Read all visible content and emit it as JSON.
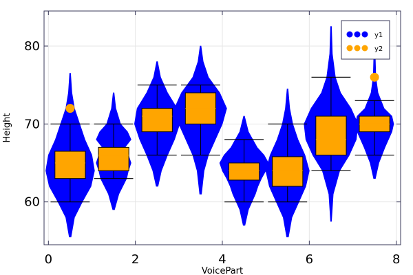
{
  "chart_data": {
    "type": "violin+box",
    "xlabel": "VoicePart",
    "ylabel": "Height",
    "xlim": [
      -0.1,
      8.1
    ],
    "ylim": [
      54.5,
      84.5
    ],
    "xticks": [
      0,
      2,
      4,
      6,
      8
    ],
    "yticks": [
      60,
      70,
      80
    ],
    "grid": true,
    "legend": {
      "position": "top-right",
      "entries": [
        {
          "name": "y1",
          "color": "#0000ff"
        },
        {
          "name": "y2",
          "color": "#ffa500"
        }
      ]
    },
    "colors": {
      "violin": "#0000ff",
      "box": "#ffa500",
      "whisker_line": "#000000"
    },
    "groups": [
      {
        "x": 0.5,
        "min": 55.5,
        "max": 76.5,
        "whisker_low": 60,
        "q1": 63,
        "median": 65,
        "q3": 66.5,
        "whisker_high": 70,
        "outliers": [
          72
        ],
        "density": [
          [
            55.5,
            0.02
          ],
          [
            58,
            0.1
          ],
          [
            60,
            0.28
          ],
          [
            62,
            0.48
          ],
          [
            64,
            0.56
          ],
          [
            66,
            0.5
          ],
          [
            68,
            0.34
          ],
          [
            70,
            0.22
          ],
          [
            72,
            0.1
          ],
          [
            74,
            0.04
          ],
          [
            76.5,
            0.01
          ]
        ]
      },
      {
        "x": 1.5,
        "min": 59,
        "max": 74,
        "whisker_low": 63,
        "q1": 64,
        "median": 66,
        "q3": 67,
        "whisker_high": 70,
        "outliers": [],
        "density": [
          [
            59,
            0.02
          ],
          [
            61,
            0.12
          ],
          [
            63,
            0.3
          ],
          [
            64,
            0.34
          ],
          [
            65,
            0.4
          ],
          [
            66,
            0.34
          ],
          [
            67,
            0.26
          ],
          [
            68,
            0.4
          ],
          [
            69,
            0.32
          ],
          [
            70,
            0.16
          ],
          [
            72,
            0.05
          ],
          [
            74,
            0.01
          ]
        ]
      },
      {
        "x": 2.5,
        "min": 62,
        "max": 78,
        "whisker_low": 66,
        "q1": 69,
        "median": 71,
        "q3": 72,
        "whisker_high": 75,
        "outliers": [],
        "density": [
          [
            62,
            0.02
          ],
          [
            64,
            0.1
          ],
          [
            66,
            0.24
          ],
          [
            68,
            0.4
          ],
          [
            70,
            0.52
          ],
          [
            72,
            0.46
          ],
          [
            74,
            0.24
          ],
          [
            76,
            0.08
          ],
          [
            78,
            0.01
          ]
        ]
      },
      {
        "x": 3.5,
        "min": 61,
        "max": 80,
        "whisker_low": 66,
        "q1": 70,
        "median": 72,
        "q3": 74,
        "whisker_high": 75,
        "outliers": [],
        "density": [
          [
            61,
            0.02
          ],
          [
            64,
            0.08
          ],
          [
            66,
            0.18
          ],
          [
            68,
            0.34
          ],
          [
            70,
            0.5
          ],
          [
            72,
            0.6
          ],
          [
            74,
            0.44
          ],
          [
            76,
            0.18
          ],
          [
            78,
            0.06
          ],
          [
            80,
            0.01
          ]
        ]
      },
      {
        "x": 4.5,
        "min": 57,
        "max": 71,
        "whisker_low": 60,
        "q1": 62.8,
        "median": 64,
        "q3": 65,
        "whisker_high": 68,
        "outliers": [],
        "density": [
          [
            57,
            0.02
          ],
          [
            59,
            0.1
          ],
          [
            61,
            0.26
          ],
          [
            62,
            0.32
          ],
          [
            63,
            0.4
          ],
          [
            64,
            0.5
          ],
          [
            65,
            0.56
          ],
          [
            66,
            0.46
          ],
          [
            67,
            0.3
          ],
          [
            69,
            0.1
          ],
          [
            71,
            0.01
          ]
        ]
      },
      {
        "x": 5.5,
        "min": 55.5,
        "max": 74.5,
        "whisker_low": 60,
        "q1": 62,
        "median": 64,
        "q3": 65.8,
        "whisker_high": 70,
        "outliers": [],
        "density": [
          [
            55.5,
            0.02
          ],
          [
            58,
            0.1
          ],
          [
            60,
            0.26
          ],
          [
            62,
            0.42
          ],
          [
            64,
            0.5
          ],
          [
            66,
            0.4
          ],
          [
            68,
            0.24
          ],
          [
            70,
            0.12
          ],
          [
            72,
            0.05
          ],
          [
            74.5,
            0.01
          ]
        ]
      },
      {
        "x": 6.5,
        "min": 57.5,
        "max": 82.5,
        "whisker_low": 64,
        "q1": 66,
        "median": 68,
        "q3": 71,
        "whisker_high": 76,
        "outliers": [],
        "density": [
          [
            57.5,
            0.01
          ],
          [
            61,
            0.05
          ],
          [
            64,
            0.2
          ],
          [
            66,
            0.42
          ],
          [
            68,
            0.58
          ],
          [
            70,
            0.62
          ],
          [
            72,
            0.46
          ],
          [
            74,
            0.22
          ],
          [
            76,
            0.1
          ],
          [
            79,
            0.03
          ],
          [
            82.5,
            0.01
          ]
        ]
      },
      {
        "x": 7.5,
        "min": 63,
        "max": 80,
        "whisker_low": 66,
        "q1": 69,
        "median": 70,
        "q3": 71,
        "whisker_high": 73,
        "outliers": [
          76
        ],
        "density": [
          [
            63,
            0.02
          ],
          [
            65,
            0.1
          ],
          [
            67,
            0.24
          ],
          [
            69,
            0.4
          ],
          [
            70,
            0.44
          ],
          [
            71,
            0.4
          ],
          [
            72,
            0.22
          ],
          [
            74,
            0.08
          ],
          [
            76,
            0.03
          ],
          [
            78,
            0.02
          ],
          [
            80,
            0.01
          ]
        ]
      }
    ]
  }
}
